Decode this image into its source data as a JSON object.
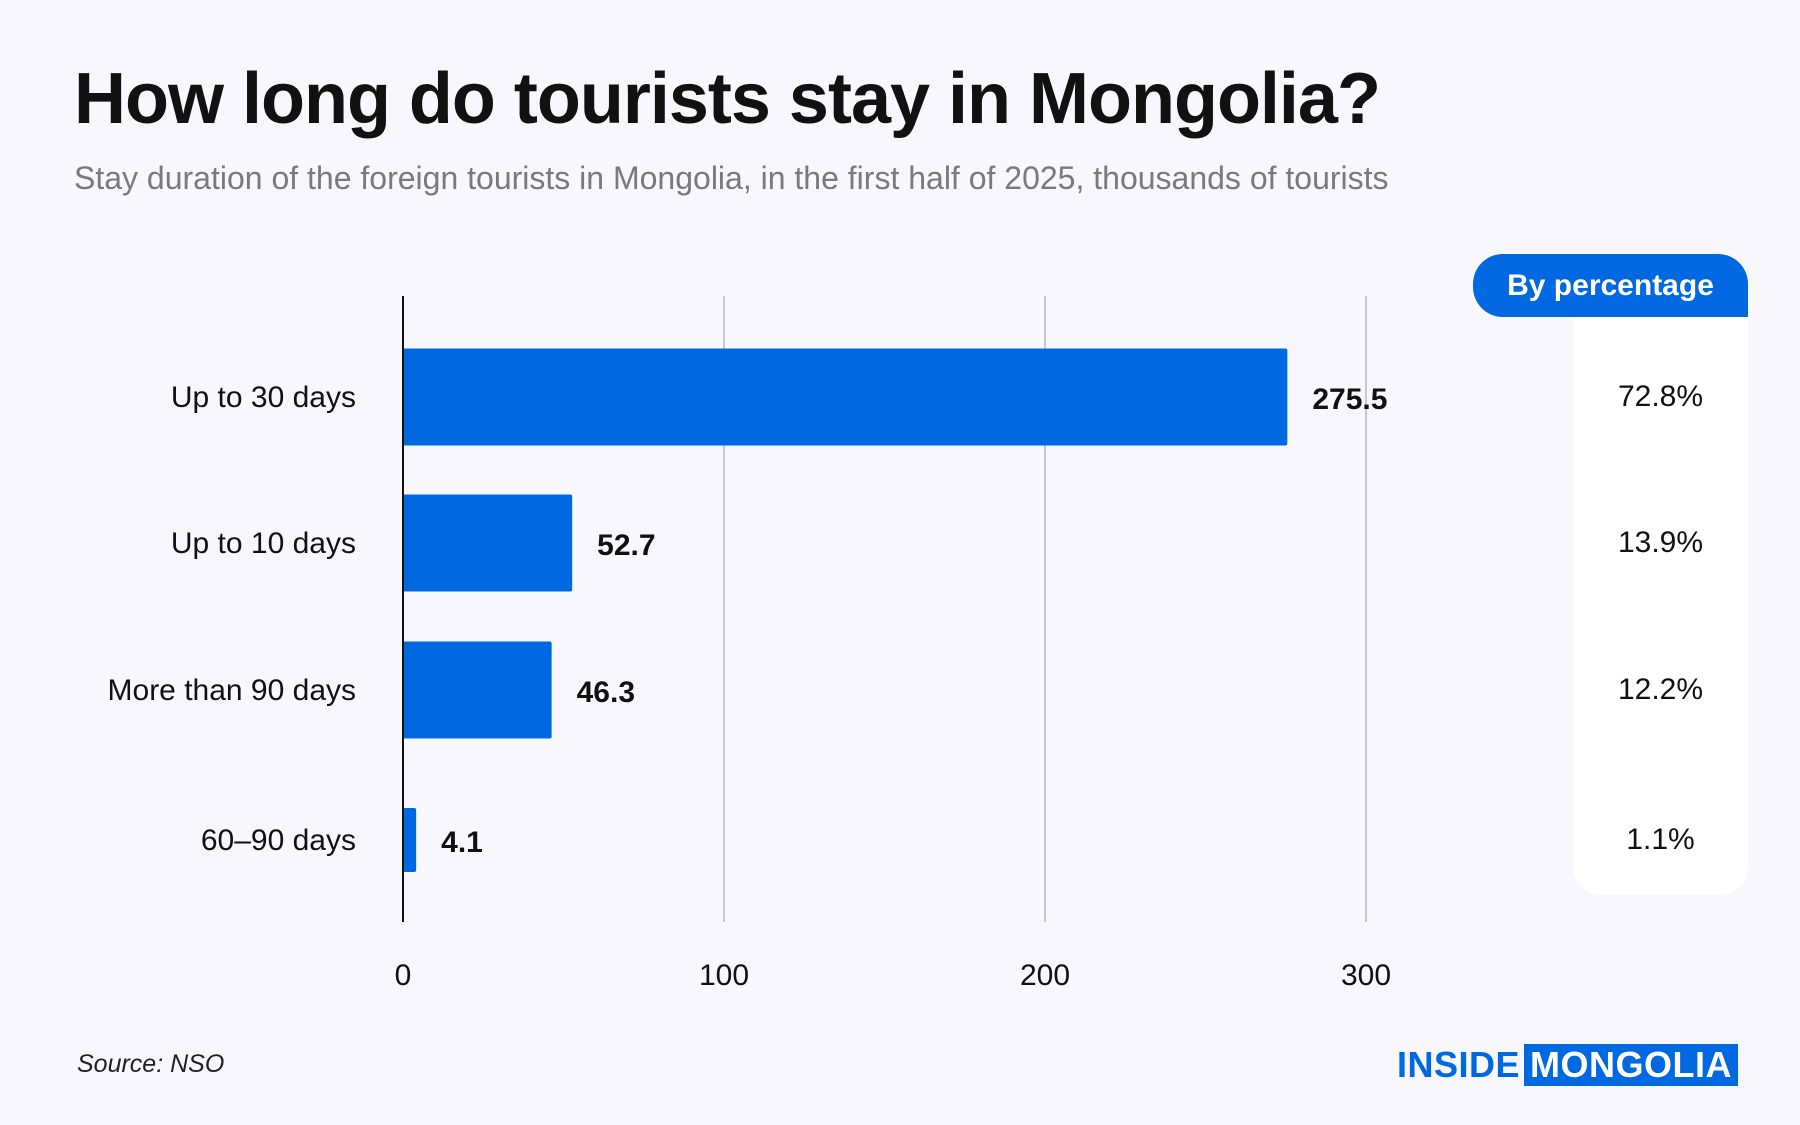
{
  "title": "How long do tourists stay in Mongolia?",
  "subtitle": "Stay duration of the foreign tourists in Mongolia, in the first half of 2025, thousands of tourists",
  "source": "Source: NSO",
  "logo": {
    "part1": "INSIDE",
    "part2": "MONGOLIA"
  },
  "percentage_header": "By percentage",
  "colors": {
    "bar": "#0068e0",
    "background": "#f7f7fd",
    "grid": "#c8c8c8"
  },
  "chart_data": {
    "type": "bar",
    "orientation": "horizontal",
    "title": "How long do tourists stay in Mongolia?",
    "subtitle": "Stay duration of the foreign tourists in Mongolia, in the first half of 2025, thousands of tourists",
    "categories": [
      "Up to 30 days",
      "Up to 10 days",
      "More than 90 days",
      "60–90 days"
    ],
    "values": [
      275.5,
      52.7,
      46.3,
      4.1
    ],
    "value_labels": [
      "275.5",
      "52.7",
      "46.3",
      "4.1"
    ],
    "percentages": [
      "72.8%",
      "13.9%",
      "12.2%",
      "1.1%"
    ],
    "xticks": [
      "0",
      "100",
      "200",
      "300"
    ],
    "xlim": [
      0,
      300
    ],
    "xlabel": "",
    "ylabel": "",
    "grid": true
  }
}
